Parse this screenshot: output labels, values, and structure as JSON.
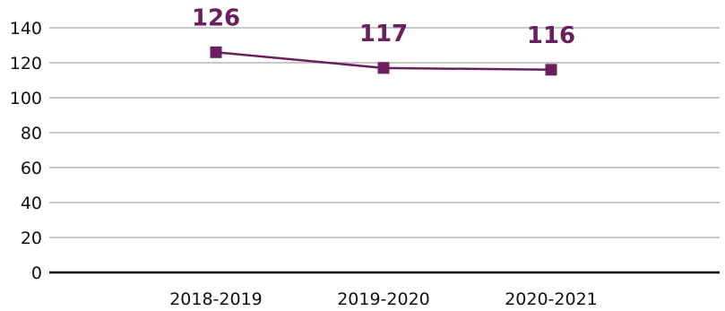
{
  "chart_data": {
    "type": "line",
    "categories": [
      "2018-2019",
      "2019-2020",
      "2020-2021"
    ],
    "series": [
      {
        "values": [
          126,
          117,
          116
        ]
      }
    ],
    "data_labels": [
      "126",
      "117",
      "116"
    ],
    "y_ticks": [
      "0",
      "20",
      "40",
      "60",
      "80",
      "100",
      "120",
      "140"
    ],
    "y_tick_values": [
      0,
      20,
      40,
      60,
      80,
      100,
      120,
      140
    ],
    "ylim": [
      0,
      140
    ],
    "grid": true,
    "marker": "square",
    "colors": {
      "series": "#6b1f5f",
      "grid": "#c8c8c8",
      "axis": "#000000"
    }
  }
}
